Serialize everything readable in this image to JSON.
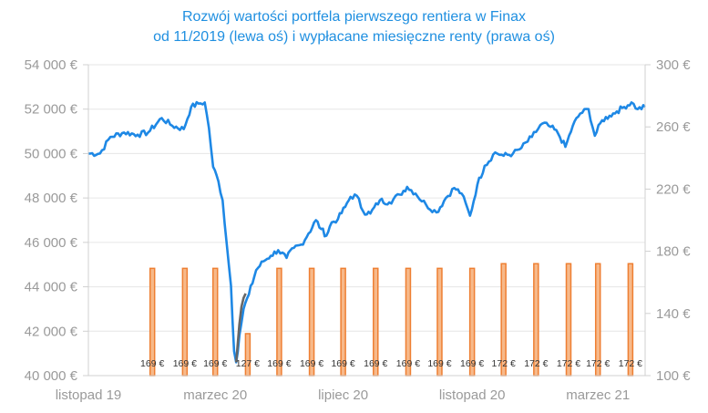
{
  "title_line1": "Rozwój wartości portfela pierwszego rentiera w Finax",
  "title_line2": "od 11/2019 (lewa oś) i wypłacane miesięczne renty (prawa oś)",
  "colors": {
    "title": "#1f8fe0",
    "portfolio_line": "#1e88e5",
    "portfolio_line_dip": "#666666",
    "bar_fill": "#f7b98a",
    "bar_stroke": "#ee7f32",
    "axis_text": "#9a9a9a"
  },
  "chart_data": {
    "type": "line+bar",
    "title": "Rozwój wartości portfela pierwszego rentiera w Finax od 11/2019 (lewa oś) i wypłacane miesięczne renty (prawa oś)",
    "left_axis": {
      "range": [
        40000,
        54000
      ],
      "ticks": [
        40000,
        42000,
        44000,
        46000,
        48000,
        50000,
        52000,
        54000
      ],
      "tick_labels": [
        "40 000 €",
        "42 000 €",
        "44 000 €",
        "46 000 €",
        "48 000 €",
        "50 000 €",
        "52 000 €",
        "54 000 €"
      ]
    },
    "right_axis": {
      "range": [
        100,
        300
      ],
      "ticks": [
        100,
        140,
        180,
        220,
        260,
        300
      ],
      "tick_labels": [
        "100 €",
        "140 €",
        "180 €",
        "220 €",
        "260 €",
        "300 €"
      ]
    },
    "x_axis": {
      "range": [
        "2019-11-01",
        "2021-04-15"
      ],
      "tick_labels": [
        "listopad 19",
        "marzec 20",
        "lipiec 20",
        "listopad 20",
        "marzec 21"
      ],
      "tick_dates": [
        "2019-11-01",
        "2020-03-01",
        "2020-07-01",
        "2020-11-01",
        "2021-03-01"
      ]
    },
    "series": [
      {
        "kind": "line",
        "axis": "left",
        "points": [
          [
            "2019-11-01",
            50000
          ],
          [
            "2019-11-12",
            50000
          ],
          [
            "2019-11-22",
            50750
          ],
          [
            "2019-12-05",
            50950
          ],
          [
            "2019-12-18",
            50850
          ],
          [
            "2019-12-28",
            50950
          ],
          [
            "2020-01-10",
            51600
          ],
          [
            "2020-01-20",
            51250
          ],
          [
            "2020-01-31",
            51100
          ],
          [
            "2020-02-07",
            52100
          ],
          [
            "2020-02-14",
            52250
          ],
          [
            "2020-02-20",
            52300
          ],
          [
            "2020-02-24",
            51150
          ],
          [
            "2020-02-28",
            49400
          ],
          [
            "2020-03-04",
            48750
          ],
          [
            "2020-03-08",
            47900
          ],
          [
            "2020-03-12",
            45900
          ],
          [
            "2020-03-16",
            44050
          ],
          [
            "2020-03-19",
            41100
          ],
          [
            "2020-03-21",
            40600
          ],
          [
            "2020-03-24",
            41800
          ],
          [
            "2020-03-28",
            43000
          ],
          [
            "2020-04-02",
            43650
          ],
          [
            "2020-04-09",
            44750
          ],
          [
            "2020-04-16",
            45150
          ],
          [
            "2020-04-23",
            45400
          ],
          [
            "2020-04-30",
            45650
          ],
          [
            "2020-05-08",
            45300
          ],
          [
            "2020-05-15",
            45750
          ],
          [
            "2020-05-22",
            45900
          ],
          [
            "2020-05-29",
            46400
          ],
          [
            "2020-06-05",
            47000
          ],
          [
            "2020-06-10",
            46600
          ],
          [
            "2020-06-15",
            46300
          ],
          [
            "2020-06-20",
            46900
          ],
          [
            "2020-06-26",
            47050
          ],
          [
            "2020-07-03",
            47600
          ],
          [
            "2020-07-08",
            48050
          ],
          [
            "2020-07-14",
            48100
          ],
          [
            "2020-07-20",
            47400
          ],
          [
            "2020-07-27",
            47300
          ],
          [
            "2020-08-05",
            47900
          ],
          [
            "2020-08-14",
            47800
          ],
          [
            "2020-08-24",
            48150
          ],
          [
            "2020-08-31",
            48500
          ],
          [
            "2020-09-08",
            48200
          ],
          [
            "2020-09-18",
            47700
          ],
          [
            "2020-09-28",
            47350
          ],
          [
            "2020-10-07",
            48000
          ],
          [
            "2020-10-15",
            48450
          ],
          [
            "2020-10-22",
            48200
          ],
          [
            "2020-10-30",
            47200
          ],
          [
            "2020-11-06",
            48600
          ],
          [
            "2020-11-13",
            49450
          ],
          [
            "2020-11-23",
            50050
          ],
          [
            "2020-12-01",
            49900
          ],
          [
            "2020-12-10",
            50000
          ],
          [
            "2020-12-18",
            50250
          ],
          [
            "2020-12-28",
            50750
          ],
          [
            "2021-01-07",
            51350
          ],
          [
            "2021-01-15",
            51200
          ],
          [
            "2021-01-22",
            50900
          ],
          [
            "2021-01-29",
            50300
          ],
          [
            "2021-02-05",
            51250
          ],
          [
            "2021-02-12",
            51800
          ],
          [
            "2021-02-20",
            52000
          ],
          [
            "2021-02-26",
            50800
          ],
          [
            "2021-03-05",
            51500
          ],
          [
            "2021-03-12",
            51700
          ],
          [
            "2021-03-19",
            51900
          ],
          [
            "2021-03-26",
            52100
          ],
          [
            "2021-04-02",
            52300
          ],
          [
            "2021-04-08",
            52000
          ],
          [
            "2021-04-15",
            52100
          ]
        ],
        "dip_segment": {
          "points": [
            [
              "2020-03-21",
              40600
            ],
            [
              "2020-03-24",
              42300
            ],
            [
              "2020-03-26",
              43100
            ],
            [
              "2020-03-28",
              43500
            ],
            [
              "2020-03-30",
              43700
            ]
          ]
        }
      },
      {
        "kind": "bar",
        "axis": "right",
        "labels": [
          "169 €",
          "169 €",
          "169 €",
          "127 €",
          "169 €",
          "169 €",
          "169 €",
          "169 €",
          "169 €",
          "169 €",
          "169 €",
          "172 €",
          "172 €",
          "172 €",
          "172 €",
          "172 €"
        ],
        "dates": [
          "2020-01-01",
          "2020-02-01",
          "2020-03-01",
          "2020-04-01",
          "2020-05-01",
          "2020-06-01",
          "2020-07-01",
          "2020-08-01",
          "2020-09-01",
          "2020-10-01",
          "2020-11-01",
          "2020-12-01",
          "2021-01-01",
          "2021-02-01",
          "2021-03-01",
          "2021-04-01"
        ],
        "values": [
          169,
          169,
          169,
          127,
          169,
          169,
          169,
          169,
          169,
          169,
          169,
          172,
          172,
          172,
          172,
          172
        ]
      }
    ]
  }
}
